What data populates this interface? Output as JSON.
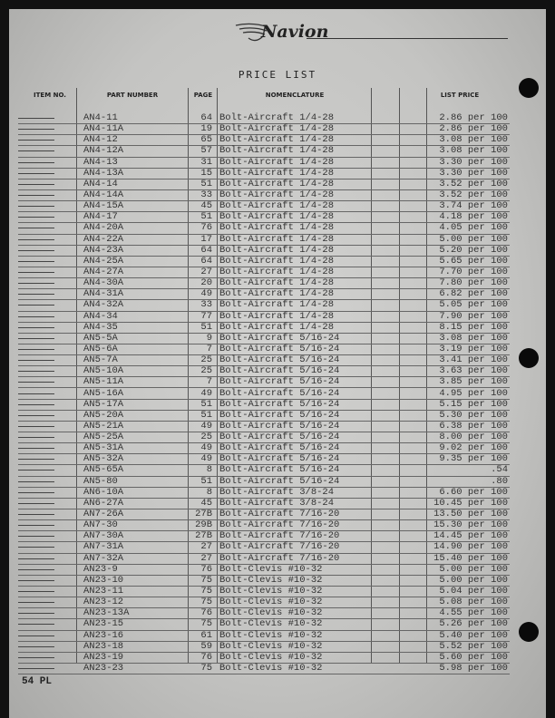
{
  "header": {
    "brand": "Navion",
    "title": "PRICE LIST"
  },
  "columns": {
    "item_no": "ITEM NO.",
    "part_number": "PART NUMBER",
    "page": "PAGE",
    "nomenclature": "NOMENCLATURE",
    "list_price": "LIST PRICE"
  },
  "rows": [
    {
      "part": "AN4-11",
      "page": "64",
      "nom": "Bolt-Aircraft 1/4-28",
      "price": "2.86 per 100"
    },
    {
      "part": "AN4-11A",
      "page": "19",
      "nom": "Bolt-Aircraft 1/4-28",
      "price": "2.86 per 100"
    },
    {
      "part": "AN4-12",
      "page": "65",
      "nom": "Bolt-Aircraft 1/4-28",
      "price": "3.08 per 100"
    },
    {
      "part": "AN4-12A",
      "page": "57",
      "nom": "Bolt-Aircraft 1/4-28",
      "price": "3.08 per 100"
    },
    {
      "part": "AN4-13",
      "page": "31",
      "nom": "Bolt-Aircraft 1/4-28",
      "price": "3.30 per 100"
    },
    {
      "part": "AN4-13A",
      "page": "15",
      "nom": "Bolt-Aircraft 1/4-28",
      "price": "3.30 per 100"
    },
    {
      "part": "AN4-14",
      "page": "51",
      "nom": "Bolt-Aircraft 1/4-28",
      "price": "3.52 per 100"
    },
    {
      "part": "AN4-14A",
      "page": "33",
      "nom": "Bolt-Aircraft 1/4-28",
      "price": "3.52 per 100"
    },
    {
      "part": "AN4-15A",
      "page": "45",
      "nom": "Bolt-Aircraft 1/4-28",
      "price": "3.74 per 100"
    },
    {
      "part": "AN4-17",
      "page": "51",
      "nom": "Bolt-Aircraft 1/4-28",
      "price": "4.18 per 100"
    },
    {
      "part": "AN4-20A",
      "page": "76",
      "nom": "Bolt-Aircraft 1/4-28",
      "price": "4.05 per 100"
    },
    {
      "part": "AN4-22A",
      "page": "17",
      "nom": "Bolt-Aircraft 1/4-28",
      "price": "5.00 per 100"
    },
    {
      "part": "AN4-23A",
      "page": "64",
      "nom": "Bolt-Aircraft 1/4-28",
      "price": "5.20 per 100"
    },
    {
      "part": "AN4-25A",
      "page": "64",
      "nom": "Bolt-Aircraft 1/4-28",
      "price": "5.65 per 100"
    },
    {
      "part": "AN4-27A",
      "page": "27",
      "nom": "Bolt-Aircraft 1/4-28",
      "price": "7.70 per 100"
    },
    {
      "part": "AN4-30A",
      "page": "20",
      "nom": "Bolt-Aircraft 1/4-28",
      "price": "7.80 per 100"
    },
    {
      "part": "AN4-31A",
      "page": "49",
      "nom": "Bolt-Aircraft 1/4-28",
      "price": "6.82 per 100"
    },
    {
      "part": "AN4-32A",
      "page": "33",
      "nom": "Bolt-Aircraft 1/4-28",
      "price": "5.05 per 100"
    },
    {
      "part": "AN4-34",
      "page": "77",
      "nom": "Bolt-Aircraft 1/4-28",
      "price": "7.90 per 100"
    },
    {
      "part": "AN4-35",
      "page": "51",
      "nom": "Bolt-Aircraft 1/4-28",
      "price": "8.15 per 100"
    },
    {
      "part": "AN5-5A",
      "page": "9",
      "nom": "Bolt-Aircraft 5/16-24",
      "price": "3.08 per 100"
    },
    {
      "part": "AN5-6A",
      "page": "7",
      "nom": "Bolt-Aircraft 5/16-24",
      "price": "3.19 per 100"
    },
    {
      "part": "AN5-7A",
      "page": "25",
      "nom": "Bolt-Aircraft 5/16-24",
      "price": "3.41 per 100"
    },
    {
      "part": "AN5-10A",
      "page": "25",
      "nom": "Bolt-Aircraft 5/16-24",
      "price": "3.63 per 100"
    },
    {
      "part": "AN5-11A",
      "page": "7",
      "nom": "Bolt-Aircraft 5/16-24",
      "price": "3.85 per 100"
    },
    {
      "part": "AN5-16A",
      "page": "49",
      "nom": "Bolt-Aircraft 5/16-24",
      "price": "4.95 per 100"
    },
    {
      "part": "AN5-17A",
      "page": "51",
      "nom": "Bolt-Aircraft 5/16-24",
      "price": "5.15 per 100"
    },
    {
      "part": "AN5-20A",
      "page": "51",
      "nom": "Bolt-Aircraft 5/16-24",
      "price": "5.30 per 100"
    },
    {
      "part": "AN5-21A",
      "page": "49",
      "nom": "Bolt-Aircraft 5/16-24",
      "price": "6.38 per 100"
    },
    {
      "part": "AN5-25A",
      "page": "25",
      "nom": "Bolt-Aircraft 5/16-24",
      "price": "8.00 per 100"
    },
    {
      "part": "AN5-31A",
      "page": "49",
      "nom": "Bolt-Aircraft 5/16-24",
      "price": "9.02 per 100"
    },
    {
      "part": "AN5-32A",
      "page": "49",
      "nom": "Bolt-Aircraft 5/16-24",
      "price": "9.35 per 100"
    },
    {
      "part": "AN5-65A",
      "page": "8",
      "nom": "Bolt-Aircraft 5/16-24",
      "price": ".54"
    },
    {
      "part": "AN5-80",
      "page": "51",
      "nom": "Bolt-Aircraft 5/16-24",
      "price": ".80"
    },
    {
      "part": "AN6-10A",
      "page": "8",
      "nom": "Bolt-Aircraft 3/8-24",
      "price": "6.60 per 100"
    },
    {
      "part": "AN6-27A",
      "page": "45",
      "nom": "Bolt-Aircraft 3/8-24",
      "price": "10.45 per 100"
    },
    {
      "part": "AN7-26A",
      "page": "27B",
      "nom": "Bolt-Aircraft 7/16-20",
      "price": "13.50 per 100"
    },
    {
      "part": "AN7-30",
      "page": "29B",
      "nom": "Bolt-Aircraft 7/16-20",
      "price": "15.30 per 100"
    },
    {
      "part": "AN7-30A",
      "page": "27B",
      "nom": "Bolt-Aircraft 7/16-20",
      "price": "14.45 per 100"
    },
    {
      "part": "AN7-31A",
      "page": "27",
      "nom": "Bolt-Aircraft 7/16-20",
      "price": "14.90 per 100"
    },
    {
      "part": "AN7-32A",
      "page": "27",
      "nom": "Bolt-Aircraft 7/16-20",
      "price": "15.40 per 100"
    },
    {
      "part": "AN23-9",
      "page": "76",
      "nom": "Bolt-Clevis #10-32",
      "price": "5.00 per 100"
    },
    {
      "part": "AN23-10",
      "page": "75",
      "nom": "Bolt-Clevis #10-32",
      "price": "5.00 per 100"
    },
    {
      "part": "AN23-11",
      "page": "75",
      "nom": "Bolt-Clevis #10-32",
      "price": "5.04 per 100"
    },
    {
      "part": "AN23-12",
      "page": "75",
      "nom": "Bolt-Clevis #10-32",
      "price": "5.08 per 100"
    },
    {
      "part": "AN23-13A",
      "page": "76",
      "nom": "Bolt-Clevis #10-32",
      "price": "4.55 per 100"
    },
    {
      "part": "AN23-15",
      "page": "75",
      "nom": "Bolt-Clevis #10-32",
      "price": "5.26 per 100"
    },
    {
      "part": "AN23-16",
      "page": "61",
      "nom": "Bolt-Clevis #10-32",
      "price": "5.40 per 100"
    },
    {
      "part": "AN23-18",
      "page": "59",
      "nom": "Bolt-Clevis #10-32",
      "price": "5.52 per 100"
    },
    {
      "part": "AN23-19",
      "page": "76",
      "nom": "Bolt-Clevis #10-32",
      "price": "5.60 per 100"
    },
    {
      "part": "AN23-23",
      "page": "75",
      "nom": "Bolt-Clevis #10-32",
      "price": "5.98 per 100"
    }
  ],
  "footer": {
    "page_label": "54 PL"
  }
}
